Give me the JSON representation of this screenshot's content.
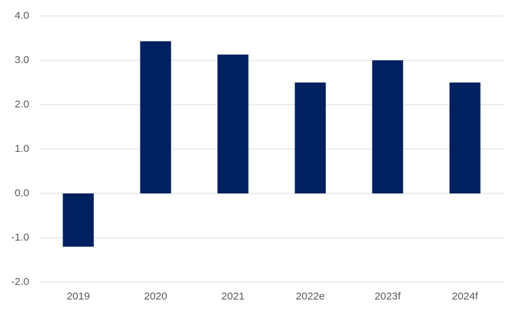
{
  "chart_data": {
    "type": "bar",
    "categories": [
      "2019",
      "2020",
      "2021",
      "2022e",
      "2023f",
      "2024f"
    ],
    "values": [
      -1.2,
      3.43,
      3.13,
      2.5,
      3.0,
      2.5
    ],
    "color": "#002060",
    "ylim": [
      -2,
      4
    ],
    "yticks": [
      {
        "value": -2,
        "label": "-2.0"
      },
      {
        "value": -1,
        "label": "-1.0"
      },
      {
        "value": 0,
        "label": "0.0"
      },
      {
        "value": 1,
        "label": "1.0"
      },
      {
        "value": 2,
        "label": "2.0"
      },
      {
        "value": 3,
        "label": "3.0"
      },
      {
        "value": 4,
        "label": "4.0"
      }
    ],
    "grid": true
  }
}
